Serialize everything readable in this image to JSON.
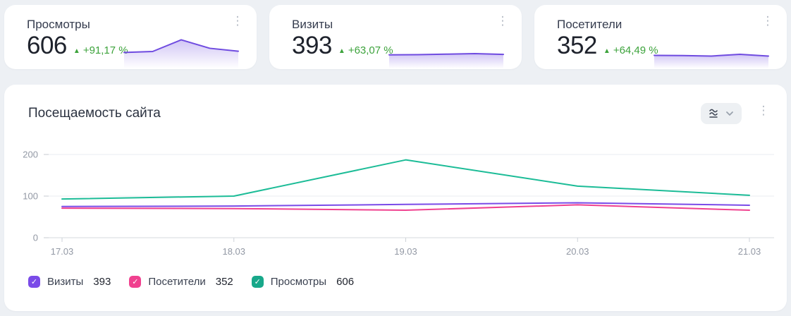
{
  "icons": {
    "menu_glyph": "⋮",
    "up_triangle": "▲",
    "check": "✓"
  },
  "colors": {
    "page_bg": "#edf0f4",
    "card_bg": "#ffffff",
    "positive": "#3da33c",
    "spark_line": "#6f4be0"
  },
  "summary_cards": [
    {
      "title": "Просмотры",
      "value": "606",
      "change": "+91,17 %",
      "spark": [
        93,
        100,
        187,
        124,
        102
      ]
    },
    {
      "title": "Визиты",
      "value": "393",
      "change": "+63,07 %",
      "spark": [
        75,
        76,
        80,
        84,
        78
      ]
    },
    {
      "title": "Посетители",
      "value": "352",
      "change": "+64,49 %",
      "spark": [
        71,
        70,
        66,
        79,
        66
      ]
    }
  ],
  "widget": {
    "title": "Посещаемость сайта"
  },
  "chart_data": {
    "type": "line",
    "title": "Посещаемость сайта",
    "x": [
      "17.03",
      "18.03",
      "19.03",
      "20.03",
      "21.03"
    ],
    "series": [
      {
        "name": "Визиты",
        "color": "#7a4be8",
        "values": [
          75,
          76,
          80,
          84,
          78
        ],
        "total": 393
      },
      {
        "name": "Посетители",
        "color": "#f0418f",
        "values": [
          71,
          70,
          66,
          79,
          66
        ],
        "total": 352
      },
      {
        "name": "Просмотры",
        "color": "#1cbc97",
        "values": [
          93,
          100,
          187,
          124,
          102
        ],
        "total": 606
      }
    ],
    "xlabel": "",
    "ylabel": "",
    "ylim": [
      0,
      200
    ],
    "yticks": [
      0,
      100,
      200
    ],
    "grid": true,
    "legend_position": "bottom"
  },
  "legend": {
    "items": [
      {
        "label": "Визиты",
        "value": "393",
        "color": "#7a4be8"
      },
      {
        "label": "Посетители",
        "value": "352",
        "color": "#f0418f"
      },
      {
        "label": "Просмотры",
        "value": "606",
        "color": "#18a88a"
      }
    ]
  }
}
